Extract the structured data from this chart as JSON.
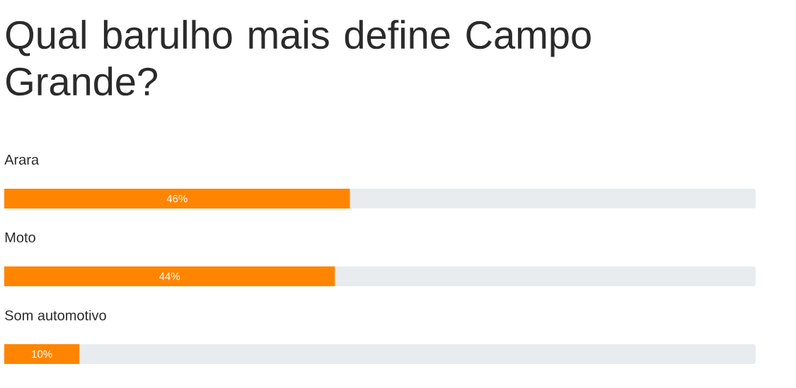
{
  "chart_data": {
    "type": "bar",
    "orientation": "horizontal",
    "title": "Qual barulho mais define Campo Grande?",
    "categories": [
      "Arara",
      "Moto",
      "Som automotivo"
    ],
    "values": [
      46,
      44,
      10
    ],
    "value_labels": [
      "46%",
      "44%",
      "10%"
    ],
    "color": "#ff8500",
    "xlim": [
      0,
      100
    ]
  }
}
